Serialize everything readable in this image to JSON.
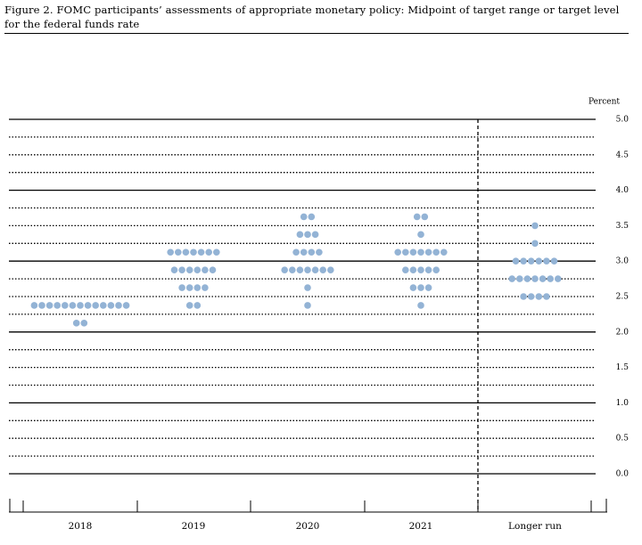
{
  "chart_data": {
    "type": "dot",
    "title": "Figure 2. FOMC participants’ assessments of appropriate monetary policy: Midpoint of target range or target level for the federal funds rate",
    "y_axis_label": "Percent",
    "categories": [
      "2018",
      "2019",
      "2020",
      "2021",
      "Longer run"
    ],
    "dots": [
      {
        "levels": [
          {
            "value": 2.375,
            "count": 13
          },
          {
            "value": 2.125,
            "count": 2
          }
        ]
      },
      {
        "levels": [
          {
            "value": 3.125,
            "count": 7
          },
          {
            "value": 2.875,
            "count": 6
          },
          {
            "value": 2.625,
            "count": 4
          },
          {
            "value": 2.375,
            "count": 2
          }
        ]
      },
      {
        "levels": [
          {
            "value": 3.625,
            "count": 2
          },
          {
            "value": 3.375,
            "count": 3
          },
          {
            "value": 3.125,
            "count": 4
          },
          {
            "value": 2.875,
            "count": 7
          },
          {
            "value": 2.625,
            "count": 1
          },
          {
            "value": 2.375,
            "count": 1
          }
        ]
      },
      {
        "levels": [
          {
            "value": 3.625,
            "count": 2
          },
          {
            "value": 3.375,
            "count": 1
          },
          {
            "value": 3.125,
            "count": 7
          },
          {
            "value": 2.875,
            "count": 5
          },
          {
            "value": 2.625,
            "count": 3
          },
          {
            "value": 2.375,
            "count": 1
          }
        ]
      },
      {
        "levels": [
          {
            "value": 3.5,
            "count": 1
          },
          {
            "value": 3.25,
            "count": 1
          },
          {
            "value": 3.0,
            "count": 6
          },
          {
            "value": 2.75,
            "count": 7
          },
          {
            "value": 2.5,
            "count": 4
          }
        ]
      }
    ],
    "color": "#93b3d5",
    "ylim": [
      0,
      5
    ],
    "yticks": [
      {
        "value": 0,
        "label": "0.0"
      },
      0.5,
      {
        "value": 1,
        "label": "1.0"
      },
      1.5,
      {
        "value": 2,
        "label": "2.0"
      },
      2.5,
      {
        "value": 3,
        "label": "3.0"
      },
      3.5,
      {
        "value": 4,
        "label": "4.0"
      },
      4.5,
      {
        "value": 5,
        "label": "5.0"
      }
    ],
    "gridlines": [
      0,
      0.25,
      0.5,
      0.75,
      1,
      1.25,
      1.5,
      1.75,
      2,
      2.25,
      2.5,
      2.75,
      3,
      3.25,
      3.5,
      3.75,
      4,
      4.25,
      4.5,
      4.75,
      5
    ]
  }
}
